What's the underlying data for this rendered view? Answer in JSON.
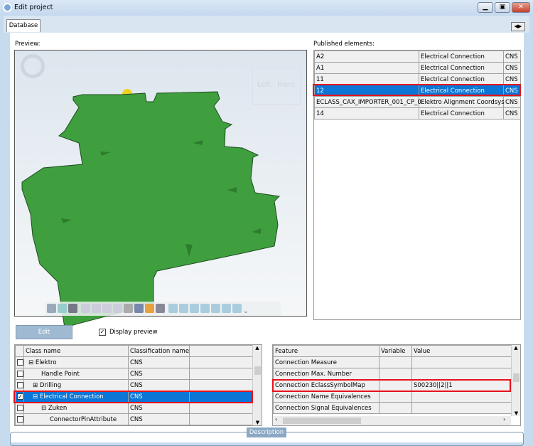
{
  "window": {
    "title": "Edit project"
  },
  "tabs": [
    {
      "label": "Database"
    }
  ],
  "preview": {
    "label": "Preview:",
    "viewcube": {
      "left": "Left",
      "front": "Front"
    },
    "model_color": "#3f9f3f"
  },
  "published": {
    "label": "Published elements:",
    "rows": [
      [
        "A2",
        "Electrical Connection",
        "CNS"
      ],
      [
        "A1",
        "Electrical Connection",
        "CNS"
      ],
      [
        "11",
        "Electrical Connection",
        "CNS"
      ],
      [
        "12",
        "Electrical Connection",
        "CNS"
      ],
      [
        "ECLASS_CAX_IMPORTER_001_CP_0",
        "Elektro Alignment Coordsys",
        "CNS"
      ],
      [
        "14",
        "Electrical Connection",
        "CNS"
      ]
    ],
    "selected_index": 3
  },
  "edit_button": "Edit",
  "display_preview": {
    "label": "Display preview",
    "checked": true
  },
  "classes": {
    "headers": [
      "Class name",
      "Classification name",
      ""
    ],
    "rows": [
      {
        "name": "Elektro",
        "cls": "CNS",
        "expander": "⊟",
        "checked": false
      },
      {
        "name": "Handle Point",
        "cls": "CNS",
        "expander": "",
        "checked": false
      },
      {
        "name": "Drilling",
        "cls": "CNS",
        "expander": "⊞",
        "checked": false
      },
      {
        "name": "Electrical Connection",
        "cls": "CNS",
        "expander": "⊟",
        "checked": true
      },
      {
        "name": "Zuken",
        "cls": "CNS",
        "expander": "⊟",
        "checked": false
      },
      {
        "name": "ConnectorPinAttribute",
        "cls": "CNS",
        "expander": "",
        "checked": false
      }
    ],
    "selected_index": 3
  },
  "features": {
    "headers": [
      "Feature",
      "Variable",
      "Value"
    ],
    "rows": [
      [
        "Connection Measure",
        "",
        ""
      ],
      [
        "Connection Max. Number",
        "",
        ""
      ],
      [
        "Connection EclassSymbolMap",
        "",
        "S00230||2||1"
      ],
      [
        "Connection Name Equivalences",
        "",
        ""
      ],
      [
        "Connection Signal Equivalences",
        "",
        ""
      ]
    ],
    "highlight_index": 2
  },
  "description": {
    "label": "Description"
  },
  "colors": {
    "selection": "#0b76d6",
    "highlight": "#e8121b"
  }
}
